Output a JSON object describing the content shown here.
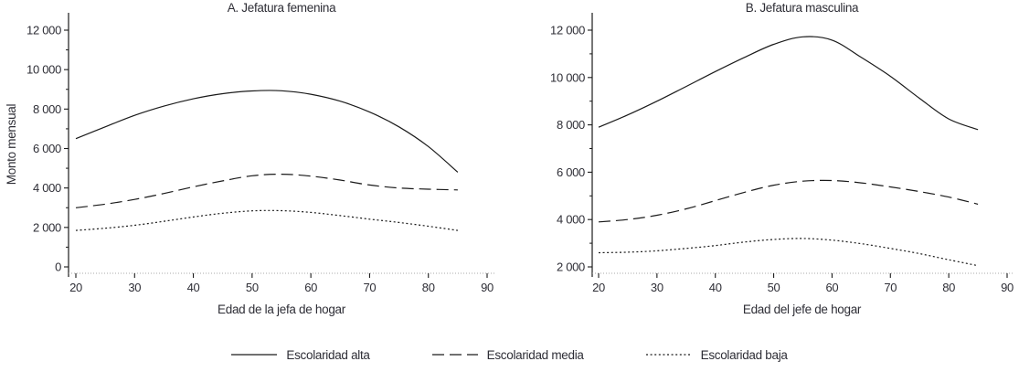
{
  "figure": {
    "line_color": "#1a1a1a",
    "text_color": "#2e2e36",
    "axis_baseline_color": "#a8a8a8"
  },
  "legend": {
    "items": [
      {
        "label": "Escolaridad alta",
        "style": "solid"
      },
      {
        "label": "Escolaridad media",
        "style": "long-dash"
      },
      {
        "label": "Escolaridad baja",
        "style": "dotted"
      }
    ]
  },
  "chart_data": [
    {
      "type": "line",
      "title": "A. Jefatura femenina",
      "xlabel": "Edad de la jefa de hogar",
      "ylabel": "Monto mensual",
      "xlim": [
        20,
        90
      ],
      "ylim": [
        0,
        12000
      ],
      "x_ticks": [
        20,
        30,
        40,
        50,
        60,
        70,
        80,
        90
      ],
      "y_ticks": [
        0,
        2000,
        4000,
        6000,
        8000,
        10000,
        12000
      ],
      "y_minor_step": 1000,
      "grid": false,
      "x": [
        20,
        25,
        30,
        35,
        40,
        45,
        50,
        55,
        60,
        65,
        70,
        75,
        80,
        85
      ],
      "series": [
        {
          "name": "Escolaridad alta",
          "style": "solid",
          "values": [
            6500,
            7100,
            7680,
            8150,
            8520,
            8780,
            8920,
            8930,
            8750,
            8400,
            7850,
            7100,
            6100,
            4800
          ]
        },
        {
          "name": "Escolaridad media",
          "style": "long-dash",
          "values": [
            3000,
            3180,
            3420,
            3720,
            4060,
            4360,
            4620,
            4700,
            4600,
            4400,
            4150,
            4000,
            3940,
            3900
          ]
        },
        {
          "name": "Escolaridad baja",
          "style": "dotted",
          "values": [
            1850,
            1960,
            2110,
            2310,
            2530,
            2720,
            2840,
            2850,
            2760,
            2600,
            2420,
            2250,
            2060,
            1850
          ]
        }
      ]
    },
    {
      "type": "line",
      "title": "B. Jefatura masculina",
      "xlabel": "Edad del jefe de hogar",
      "ylabel": "",
      "xlim": [
        20,
        90
      ],
      "ylim": [
        2000,
        12000
      ],
      "x_ticks": [
        20,
        30,
        40,
        50,
        60,
        70,
        80,
        90
      ],
      "y_ticks": [
        2000,
        4000,
        6000,
        8000,
        10000,
        12000
      ],
      "y_minor_step": 1000,
      "grid": false,
      "x": [
        20,
        25,
        30,
        35,
        40,
        45,
        50,
        55,
        60,
        65,
        70,
        75,
        80,
        85
      ],
      "series": [
        {
          "name": "Escolaridad alta",
          "style": "solid",
          "values": [
            7900,
            8420,
            9000,
            9620,
            10250,
            10850,
            11400,
            11720,
            11580,
            10850,
            10050,
            9120,
            8250,
            7800
          ]
        },
        {
          "name": "Escolaridad media",
          "style": "long-dash",
          "values": [
            3900,
            4000,
            4180,
            4450,
            4800,
            5150,
            5450,
            5620,
            5650,
            5550,
            5380,
            5180,
            4950,
            4650
          ]
        },
        {
          "name": "Escolaridad baja",
          "style": "dotted",
          "values": [
            2600,
            2620,
            2680,
            2780,
            2900,
            3050,
            3160,
            3200,
            3130,
            2980,
            2780,
            2560,
            2300,
            2050
          ]
        }
      ]
    }
  ]
}
